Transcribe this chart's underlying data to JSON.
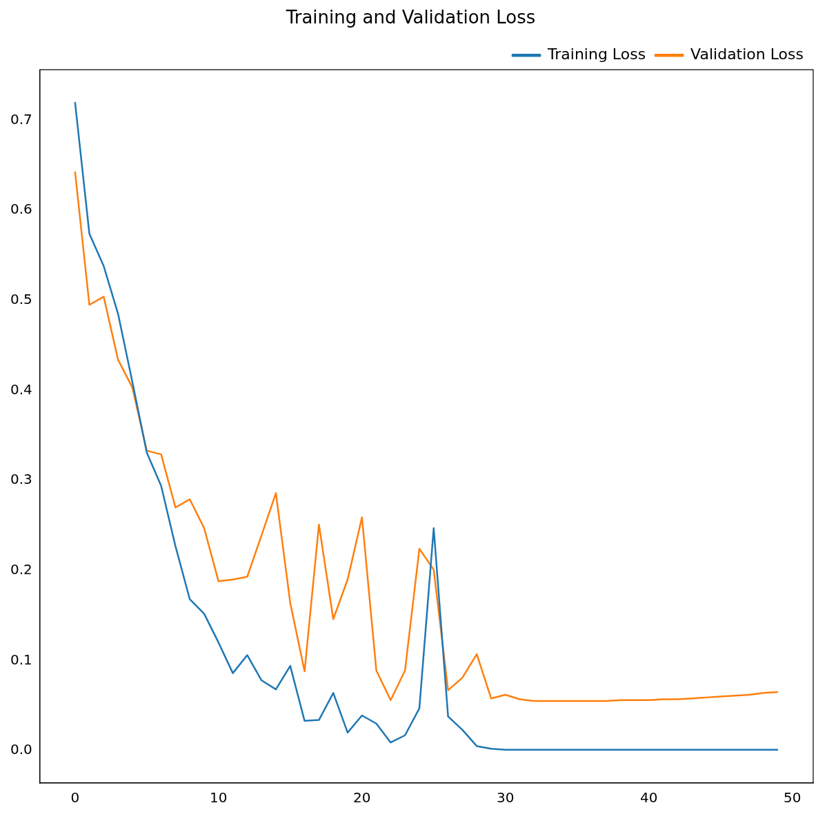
{
  "chart_data": {
    "type": "line",
    "title": "Training and Validation Loss",
    "x": [
      0,
      1,
      2,
      3,
      4,
      5,
      6,
      7,
      8,
      9,
      10,
      11,
      12,
      13,
      14,
      15,
      16,
      17,
      18,
      19,
      20,
      21,
      22,
      23,
      24,
      25,
      26,
      27,
      28,
      29,
      30,
      31,
      32,
      33,
      34,
      35,
      36,
      37,
      38,
      39,
      40,
      41,
      42,
      43,
      44,
      45,
      46,
      47,
      48,
      49
    ],
    "series": [
      {
        "name": "Training Loss",
        "color": "#1f77b4",
        "values": [
          0.72,
          0.574,
          0.538,
          0.485,
          0.409,
          0.331,
          0.294,
          0.227,
          0.168,
          0.152,
          0.12,
          0.086,
          0.106,
          0.078,
          0.068,
          0.094,
          0.033,
          0.034,
          0.064,
          0.02,
          0.039,
          0.03,
          0.009,
          0.017,
          0.047,
          0.247,
          0.038,
          0.023,
          0.005,
          0.002,
          0.001,
          0.001,
          0.001,
          0.001,
          0.001,
          0.001,
          0.001,
          0.001,
          0.001,
          0.001,
          0.001,
          0.001,
          0.001,
          0.001,
          0.001,
          0.001,
          0.001,
          0.001,
          0.001,
          0.001
        ]
      },
      {
        "name": "Validation Loss",
        "color": "#ff7f0e",
        "values": [
          0.643,
          0.495,
          0.504,
          0.434,
          0.403,
          0.333,
          0.329,
          0.27,
          0.279,
          0.247,
          0.188,
          0.19,
          0.193,
          0.239,
          0.286,
          0.164,
          0.088,
          0.251,
          0.146,
          0.19,
          0.259,
          0.089,
          0.056,
          0.089,
          0.224,
          0.201,
          0.067,
          0.081,
          0.107,
          0.058,
          0.062,
          0.057,
          0.055,
          0.055,
          0.055,
          0.055,
          0.055,
          0.055,
          0.056,
          0.056,
          0.056,
          0.057,
          0.057,
          0.058,
          0.059,
          0.06,
          0.061,
          0.062,
          0.064,
          0.065
        ]
      }
    ],
    "xlim": [
      -2.45,
      51.45
    ],
    "ylim": [
      -0.036,
      0.756
    ],
    "xticks": [
      0,
      10,
      20,
      30,
      40,
      50
    ],
    "yticks": [
      {
        "value": 0,
        "label": "0.0"
      },
      {
        "value": 0.1,
        "label": "0.1"
      },
      {
        "value": 0.2,
        "label": "0.2"
      },
      {
        "value": 0.3,
        "label": "0.3"
      },
      {
        "value": 0.4,
        "label": "0.4"
      },
      {
        "value": 0.5,
        "label": "0.5"
      },
      {
        "value": 0.6,
        "label": "0.6"
      },
      {
        "value": 0.7,
        "label": "0.7"
      }
    ],
    "grid": false,
    "legend": "top right",
    "marker": "none",
    "line_style": "solid"
  }
}
